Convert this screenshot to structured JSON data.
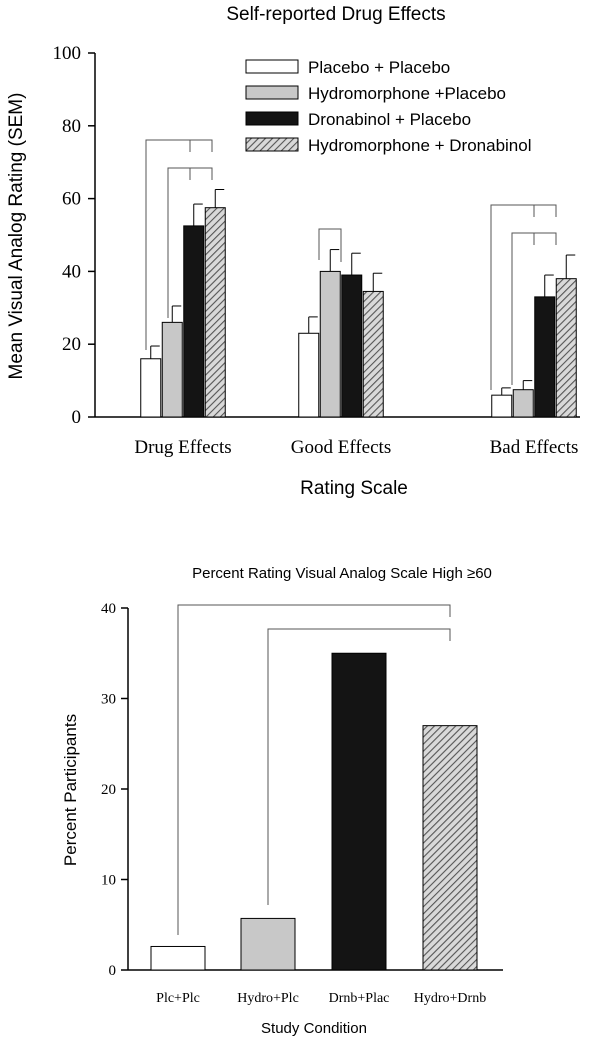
{
  "colors": {
    "placebo": "#ffffff",
    "hydromorphone": "#c8c8c8",
    "dronabinol": "#141414",
    "combo_stripe_light": "#d9d9d9",
    "combo_stripe_dark": "#555555",
    "axis": "#000000",
    "bracket": "#555555"
  },
  "chart_data": [
    {
      "type": "bar",
      "title": "Self-reported Drug Effects",
      "xlabel": "Rating Scale",
      "ylabel": "Mean Visual Analog Rating (SEM)",
      "ylim": [
        0,
        100
      ],
      "yticks": [
        "0",
        "20",
        "40",
        "60",
        "80",
        "100"
      ],
      "categories": [
        "Drug Effects",
        "Good Effects",
        "Bad Effects"
      ],
      "legend_position": "top-right",
      "series": [
        {
          "name": "Placebo + Placebo",
          "fill": "placebo",
          "values": [
            16,
            23,
            6
          ],
          "errors": [
            3.5,
            4.5,
            2
          ]
        },
        {
          "name": "Hydromorphone +Placebo",
          "fill": "hydromorphone",
          "values": [
            26,
            40,
            7.5
          ],
          "errors": [
            4.5,
            6,
            2.5
          ]
        },
        {
          "name": "Dronabinol  + Placebo",
          "fill": "dronabinol",
          "values": [
            52.5,
            39,
            33
          ],
          "errors": [
            6,
            6,
            6
          ]
        },
        {
          "name": "Hydromorphone + Dronabinol",
          "fill": "hatch",
          "values": [
            57.5,
            34.5,
            38
          ],
          "errors": [
            5,
            5,
            6.5
          ]
        }
      ]
    },
    {
      "type": "bar",
      "title": "Percent Rating Visual Analog Scale High ≥60",
      "xlabel": "Study Condition",
      "ylabel": "Percent Participants",
      "ylim": [
        0,
        40
      ],
      "yticks": [
        "0",
        "10",
        "20",
        "30",
        "40"
      ],
      "categories": [
        "Plc+Plc",
        "Hydro+Plc",
        "Drnb+Plac",
        "Hydro+Drnb"
      ],
      "fills": [
        "placebo",
        "hydromorphone",
        "dronabinol",
        "hatch"
      ],
      "values": [
        2.6,
        5.7,
        35,
        27
      ]
    }
  ]
}
